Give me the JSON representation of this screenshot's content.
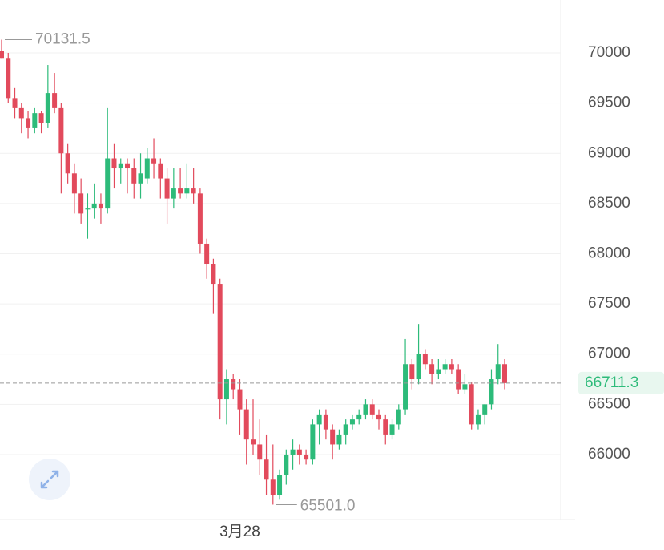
{
  "chart_data": {
    "type": "candlestick",
    "up_color": "#2dbb7a",
    "down_color": "#e24a5c",
    "ylim": [
      65353,
      70527
    ],
    "yticks": [
      66000,
      66500,
      67000,
      67500,
      68000,
      68500,
      69000,
      69500,
      70000
    ],
    "grid": true,
    "last_price": 66711.3,
    "high_label": 70131.5,
    "low_label": {
      "value": 65501,
      "label": "65501.0"
    },
    "categories": [
      null,
      null,
      null,
      null,
      null,
      null,
      null,
      null,
      null,
      null,
      null,
      null,
      null,
      null,
      null,
      null,
      null,
      null,
      null,
      null,
      null,
      null,
      null,
      null,
      null,
      null,
      null,
      null,
      null,
      null,
      null,
      null,
      null,
      null,
      null,
      null,
      "3月28",
      null,
      null,
      null,
      null,
      null,
      null,
      null,
      null,
      null,
      null,
      null,
      null,
      null,
      null,
      null,
      null,
      null,
      null,
      null,
      null,
      null,
      null,
      null,
      null,
      null,
      null,
      null,
      null,
      null,
      null,
      null,
      null,
      null,
      null,
      null,
      null,
      null,
      null,
      null,
      null
    ],
    "ohlc": [
      [
        70020,
        70131.5,
        69950,
        69950
      ],
      [
        69950,
        70000,
        69500,
        69550
      ],
      [
        69550,
        69650,
        69350,
        69450
      ],
      [
        69450,
        69500,
        69200,
        69350
      ],
      [
        69350,
        69420,
        69150,
        69250
      ],
      [
        69250,
        69450,
        69200,
        69400
      ],
      [
        69400,
        69420,
        69200,
        69300
      ],
      [
        69300,
        69880,
        69250,
        69600
      ],
      [
        69600,
        69800,
        69400,
        69450
      ],
      [
        69450,
        69500,
        68600,
        69000
      ],
      [
        69000,
        69100,
        68700,
        68800
      ],
      [
        68800,
        68900,
        68400,
        68600
      ],
      [
        68600,
        68750,
        68300,
        68400
      ],
      [
        68450,
        68600,
        68150,
        68450
      ],
      [
        68450,
        68700,
        68350,
        68500
      ],
      [
        68500,
        68600,
        68300,
        68450
      ],
      [
        68450,
        69450,
        68400,
        68950
      ],
      [
        68950,
        69100,
        68650,
        68850
      ],
      [
        68850,
        68950,
        68700,
        68900
      ],
      [
        68900,
        68950,
        68600,
        68850
      ],
      [
        68850,
        68950,
        68550,
        68700
      ],
      [
        68700,
        69000,
        68550,
        68800
      ],
      [
        68750,
        69050,
        68700,
        68950
      ],
      [
        68950,
        69150,
        68750,
        68900
      ],
      [
        68900,
        68950,
        68550,
        68750
      ],
      [
        68750,
        68850,
        68300,
        68550
      ],
      [
        68550,
        68850,
        68450,
        68650
      ],
      [
        68650,
        68850,
        68550,
        68600
      ],
      [
        68600,
        68900,
        68550,
        68650
      ],
      [
        68650,
        68850,
        68500,
        68600
      ],
      [
        68600,
        68650,
        68000,
        68100
      ],
      [
        68100,
        68150,
        67750,
        67900
      ],
      [
        67900,
        67950,
        67400,
        67700
      ],
      [
        67700,
        67750,
        66350,
        66550
      ],
      [
        66550,
        66850,
        66300,
        66750
      ],
      [
        66750,
        66800,
        66550,
        66650
      ],
      [
        66650,
        66750,
        66200,
        66450
      ],
      [
        66450,
        66550,
        65900,
        66150
      ],
      [
        66150,
        66550,
        66000,
        66100
      ],
      [
        66100,
        66350,
        65800,
        65950
      ],
      [
        65950,
        66200,
        65600,
        65750
      ],
      [
        65750,
        66100,
        65501,
        65600
      ],
      [
        65600,
        65850,
        65550,
        65800
      ],
      [
        65800,
        66050,
        65700,
        66000
      ],
      [
        66000,
        66150,
        65850,
        66050
      ],
      [
        66050,
        66100,
        65900,
        66000
      ],
      [
        66000,
        66050,
        65900,
        65950
      ],
      [
        65950,
        66350,
        65900,
        66300
      ],
      [
        66300,
        66450,
        66100,
        66400
      ],
      [
        66400,
        66450,
        66150,
        66250
      ],
      [
        66250,
        66300,
        65950,
        66100
      ],
      [
        66100,
        66250,
        66050,
        66200
      ],
      [
        66200,
        66350,
        66100,
        66300
      ],
      [
        66300,
        66400,
        66250,
        66350
      ],
      [
        66350,
        66450,
        66300,
        66400
      ],
      [
        66400,
        66550,
        66350,
        66500
      ],
      [
        66500,
        66550,
        66350,
        66400
      ],
      [
        66400,
        66450,
        66250,
        66350
      ],
      [
        66350,
        66400,
        66100,
        66200
      ],
      [
        66200,
        66350,
        66150,
        66300
      ],
      [
        66300,
        66500,
        66250,
        66450
      ],
      [
        66450,
        67150,
        66400,
        66900
      ],
      [
        66900,
        66950,
        66650,
        66750
      ],
      [
        66750,
        67300,
        66700,
        67000
      ],
      [
        67000,
        67050,
        66850,
        66900
      ],
      [
        66900,
        66950,
        66700,
        66800
      ],
      [
        66800,
        66950,
        66750,
        66850
      ],
      [
        66850,
        66950,
        66800,
        66900
      ],
      [
        66900,
        66950,
        66800,
        66850
      ],
      [
        66850,
        66900,
        66600,
        66650
      ],
      [
        66650,
        66800,
        66600,
        66700
      ],
      [
        66700,
        66720,
        66250,
        66300
      ],
      [
        66300,
        66450,
        66250,
        66400
      ],
      [
        66400,
        66500,
        66300,
        66500
      ],
      [
        66500,
        66850,
        66450,
        66750
      ],
      [
        66750,
        67100,
        66700,
        66900
      ],
      [
        66900,
        66950,
        66650,
        66711.3
      ]
    ]
  }
}
